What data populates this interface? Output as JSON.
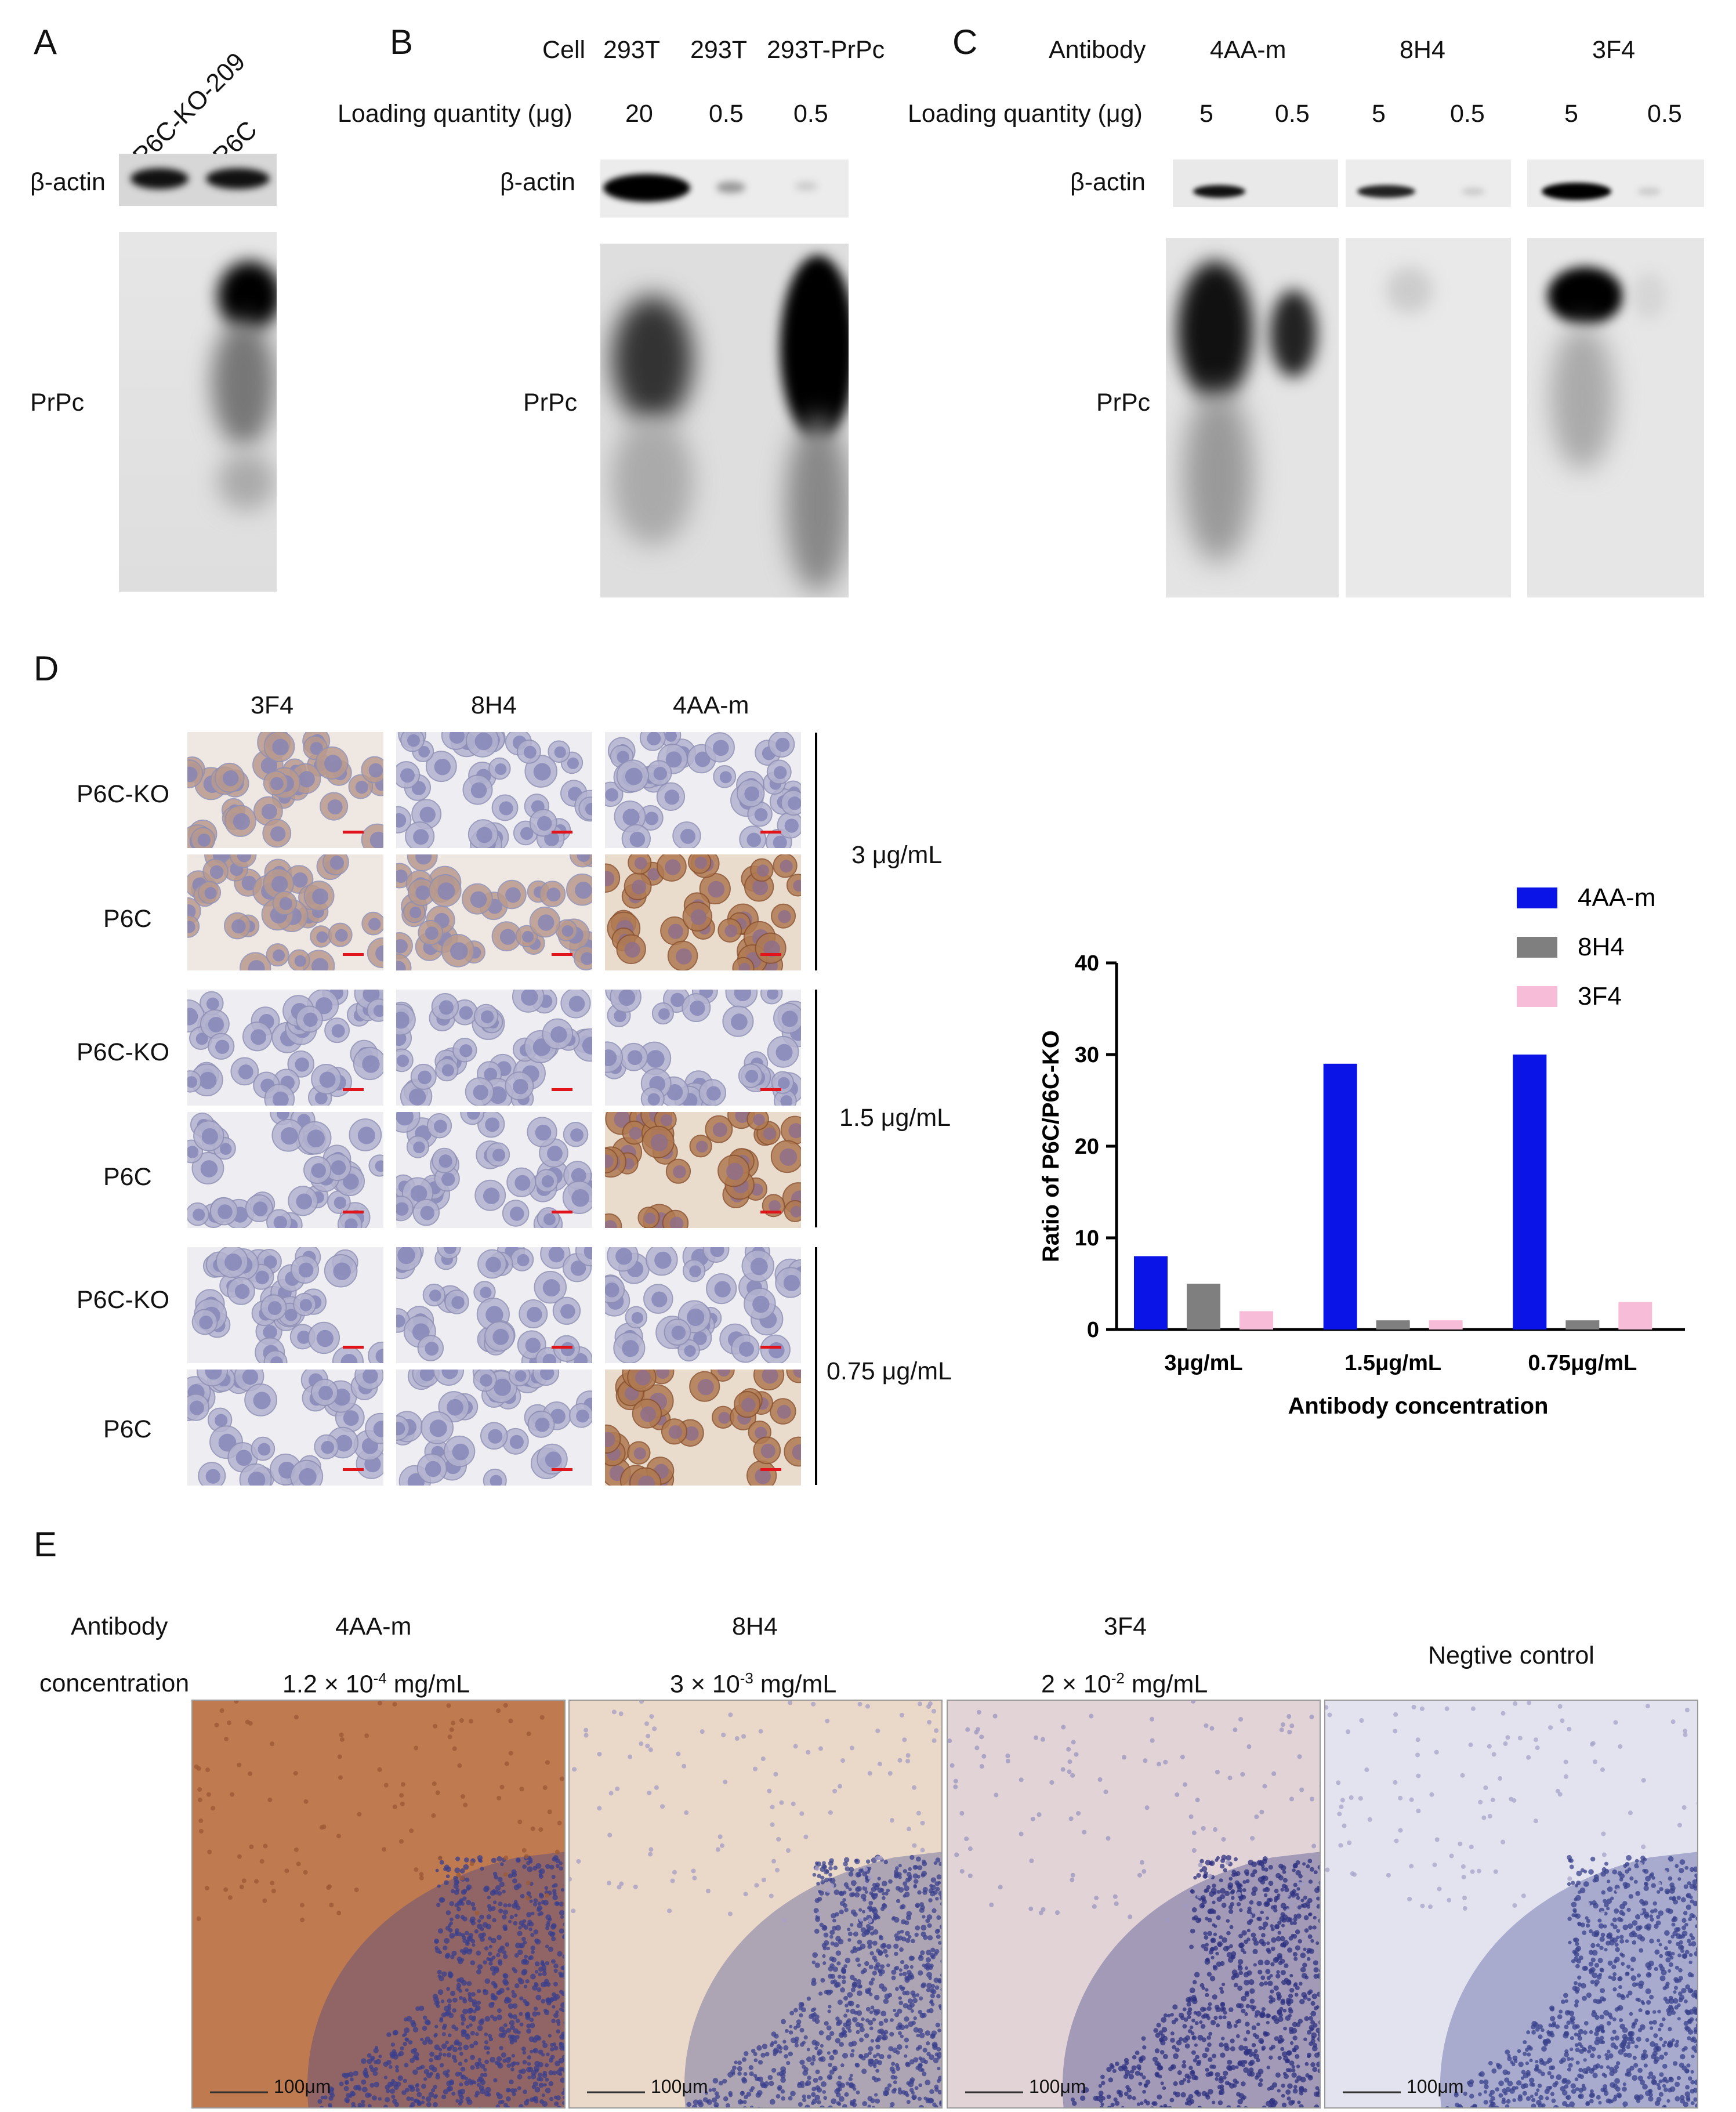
{
  "panels": {
    "A": "A",
    "B": "B",
    "C": "C",
    "D": "D",
    "E": "E"
  },
  "panelA": {
    "lanes": [
      "P6C-KO-209",
      "P6C"
    ],
    "actin": "β-actin",
    "prpc": "PrPc"
  },
  "panelB": {
    "cell_label": "Cell",
    "cells": [
      "293T",
      "293T",
      "293T-PrPc"
    ],
    "load_label": "Loading quantity (μg)",
    "loads": [
      "20",
      "0.5",
      "0.5"
    ],
    "actin": "β-actin",
    "prpc": "PrPc"
  },
  "panelC": {
    "antibody_label": "Antibody",
    "antibodies": [
      "4AA-m",
      "8H4",
      "3F4"
    ],
    "load_label": "Loading quantity (μg)",
    "loads": [
      "5",
      "0.5",
      "5",
      "0.5",
      "5",
      "0.5"
    ],
    "actin": "β-actin",
    "prpc": "PrPc"
  },
  "panelD": {
    "columns": [
      "3F4",
      "8H4",
      "4AA-m"
    ],
    "rows": [
      "P6C-KO",
      "P6C",
      "P6C-KO",
      "P6C",
      "P6C-KO",
      "P6C"
    ],
    "concentrations": [
      "3 μg/mL",
      "1.5 μg/mL",
      "0.75 μg/mL"
    ]
  },
  "panelE": {
    "row_label_1": "Antibody",
    "row_label_2": "concentration",
    "columns": [
      {
        "name": "4AA-m",
        "conc_base": "1.2 × 10",
        "conc_exp": "-4",
        "conc_unit": " mg/mL"
      },
      {
        "name": "8H4",
        "conc_base": "3 × 10",
        "conc_exp": "-3",
        "conc_unit": " mg/mL"
      },
      {
        "name": "3F4",
        "conc_base": "2 × 10",
        "conc_exp": "-2",
        "conc_unit": " mg/mL"
      },
      {
        "name": "Negtive control"
      }
    ],
    "scale_label": "100μm"
  },
  "chart_data": {
    "type": "bar",
    "categories": [
      "3μg/mL",
      "1.5μg/mL",
      "0.75μg/mL"
    ],
    "series": [
      {
        "name": "4AA-m",
        "color": "#0a14e6",
        "values": [
          8,
          29,
          30
        ]
      },
      {
        "name": "8H4",
        "color": "#7f7f7f",
        "values": [
          5,
          1,
          1
        ]
      },
      {
        "name": "3F4",
        "color": "#f7bcd8",
        "values": [
          2,
          1,
          3
        ]
      }
    ],
    "xlabel": "Antibody concentration",
    "ylabel": "Ratio of P6C/P6C-KO",
    "ylim": [
      0,
      40
    ],
    "yticks": [
      "0",
      "10",
      "20",
      "30",
      "40"
    ],
    "legend": "top-right"
  }
}
